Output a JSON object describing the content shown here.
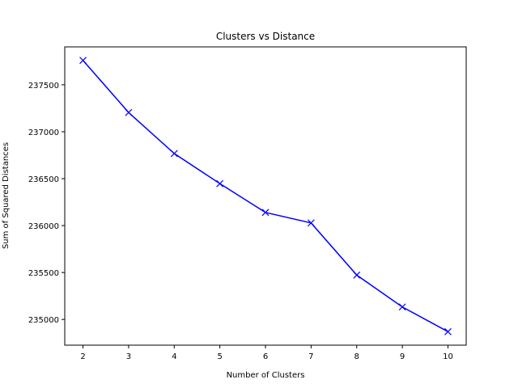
{
  "chart_data": {
    "type": "line",
    "title": "Clusters vs Distance",
    "xlabel": "Number of Clusters",
    "ylabel": "Sum of Squared Distances",
    "x": [
      2,
      3,
      4,
      5,
      6,
      7,
      8,
      9,
      10
    ],
    "series": [
      {
        "values": [
          237760,
          237205,
          236768,
          236447,
          236140,
          236028,
          235473,
          235133,
          234870
        ],
        "color": "#0000ff",
        "marker": "x"
      }
    ],
    "xticks": [
      "2",
      "3",
      "4",
      "5",
      "6",
      "7",
      "8",
      "9",
      "10"
    ],
    "yticks": [
      "235000",
      "235500",
      "236000",
      "236500",
      "237000",
      "237500"
    ],
    "xlim": [
      1.6,
      10.4
    ],
    "ylim": [
      234726,
      237904
    ],
    "grid": false,
    "legend": null
  }
}
